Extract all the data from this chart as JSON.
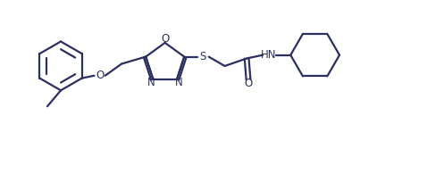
{
  "bg_color": "#ffffff",
  "line_color": "#2c3060",
  "line_width": 1.6,
  "font_size": 8.5,
  "figsize": [
    4.78,
    1.95
  ],
  "dpi": 100,
  "xlim": [
    0,
    10
  ],
  "ylim": [
    0,
    4.1
  ]
}
